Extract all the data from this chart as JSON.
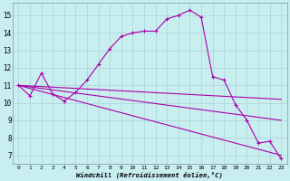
{
  "background_color": "#c8eef0",
  "line_color": "#aa00aa",
  "grid_color": "#aad4d8",
  "xlabel": "Windchill (Refroidissement éolien,°C)",
  "xlim": [
    -0.5,
    23.5
  ],
  "ylim": [
    6.5,
    15.7
  ],
  "yticks": [
    7,
    8,
    9,
    10,
    11,
    12,
    13,
    14,
    15
  ],
  "xticks": [
    0,
    1,
    2,
    3,
    4,
    5,
    6,
    7,
    8,
    9,
    10,
    11,
    12,
    13,
    14,
    15,
    16,
    17,
    18,
    19,
    20,
    21,
    22,
    23
  ],
  "line1_x": [
    0,
    1,
    2,
    3,
    4,
    5,
    6,
    7,
    8,
    9,
    10,
    11,
    12,
    13,
    14,
    15,
    16,
    17,
    18,
    19,
    20,
    21,
    22,
    23
  ],
  "line1_y": [
    11.0,
    10.4,
    11.7,
    10.5,
    10.1,
    10.6,
    11.3,
    12.2,
    13.1,
    13.8,
    14.0,
    14.1,
    14.1,
    14.8,
    15.0,
    15.3,
    14.9,
    11.5,
    11.3,
    9.9,
    9.0,
    7.7,
    7.8,
    6.8
  ],
  "line2_x": [
    0,
    23
  ],
  "line2_y": [
    11.0,
    10.2
  ],
  "line3_x": [
    0,
    23
  ],
  "line3_y": [
    11.0,
    9.0
  ],
  "line4_x": [
    0,
    23
  ],
  "line4_y": [
    11.0,
    7.0
  ]
}
